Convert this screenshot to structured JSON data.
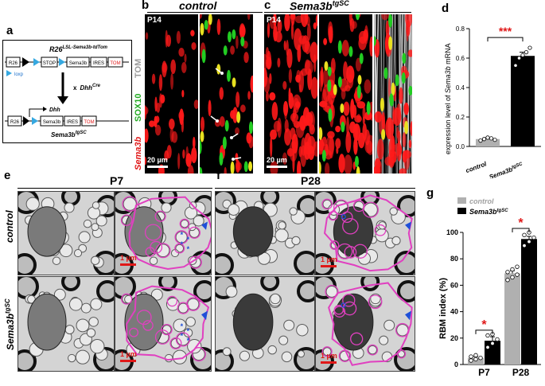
{
  "panels": {
    "a": {
      "label": "a",
      "allele_title": "R26",
      "allele_sup": "LSL-Sema3b-tdTom",
      "boxes": [
        "R26",
        "STOP",
        "Sema3b",
        "IRES",
        "TOM"
      ],
      "loxp_legend": "loxp",
      "cross_x": "x",
      "cross_cre": "Dhh",
      "cross_cre_sup": "Cre",
      "promoter": "Dhh",
      "result_boxes": [
        "R26",
        "Sema3b",
        "IRES",
        "TOM"
      ],
      "result_name": "Sema3b",
      "result_sup": "tgSC"
    },
    "b": {
      "label": "b",
      "title": "control",
      "age": "P14",
      "scale": "20 µm",
      "channel_tom": "TOM",
      "channel_sox10": "SOX10",
      "channel_sema": "Sema3b"
    },
    "c": {
      "label": "c",
      "title": "Sema3b",
      "title_sup": "tgSC",
      "age": "P14",
      "scale": "20 µm"
    },
    "d": {
      "label": "d",
      "ylabel_pre": "expression level of ",
      "ylabel_gene": "Sema3b",
      "ylabel_post": " mRNA",
      "significance": "***",
      "categories": [
        "control",
        "Sema3b"
      ],
      "category_sup": [
        "",
        "tgSC"
      ]
    },
    "e": {
      "label": "e",
      "title": "P7",
      "row_labels": [
        "control",
        "Sema3b"
      ],
      "row_sup": [
        "",
        "tgSC"
      ],
      "scale": "1 µm"
    },
    "f": {
      "label": "f",
      "title": "P28",
      "scale": "1 µm"
    },
    "g": {
      "label": "g",
      "ylabel": "RBM index (%)",
      "legend": [
        "control",
        "Sema3b"
      ],
      "legend_sup": [
        "",
        "tgSC"
      ],
      "significance": "*"
    }
  },
  "colors": {
    "tom": "#ff1a1a",
    "sox10": "#22cc22",
    "magenta": "#e040c0",
    "control_bar": "#b0b0b0",
    "tg_bar": "#000000",
    "significance": "#e01818",
    "arrow_blue": "#1f4fd8"
  },
  "chart_data": [
    {
      "type": "bar",
      "panel": "d",
      "categories": [
        "control",
        "Sema3btgSC"
      ],
      "values": [
        0.05,
        0.615
      ],
      "errors": [
        0.008,
        0.025
      ],
      "ylim": [
        0,
        0.8
      ],
      "yticks": [
        0.0,
        0.2,
        0.4,
        0.6,
        0.8
      ],
      "ylabel": "expression level of Sema3b mRNA",
      "significance": "***",
      "points": [
        [
          0.04,
          0.05,
          0.06,
          0.055,
          0.045
        ],
        [
          0.55,
          0.6,
          0.62,
          0.64,
          0.67
        ]
      ]
    },
    {
      "type": "bar",
      "panel": "g",
      "categories": [
        "P7",
        "P28"
      ],
      "series": [
        {
          "name": "control",
          "values": [
            5,
            69
          ],
          "errors": [
            1,
            2
          ],
          "points": [
            [
              3,
              4,
              5,
              6,
              7
            ],
            [
              64,
              66,
              68,
              70,
              72,
              74
            ]
          ]
        },
        {
          "name": "Sema3btgSC",
          "values": [
            18,
            95
          ],
          "errors": [
            3,
            2
          ],
          "points": [
            [
              13,
              16,
              19,
              22,
              23
            ],
            [
              90,
              93,
              96,
              98,
              100
            ]
          ]
        }
      ],
      "ylim": [
        0,
        100
      ],
      "yticks": [
        0,
        20,
        40,
        60,
        80,
        100
      ],
      "ylabel": "RBM index (%)",
      "significance": "*"
    }
  ]
}
